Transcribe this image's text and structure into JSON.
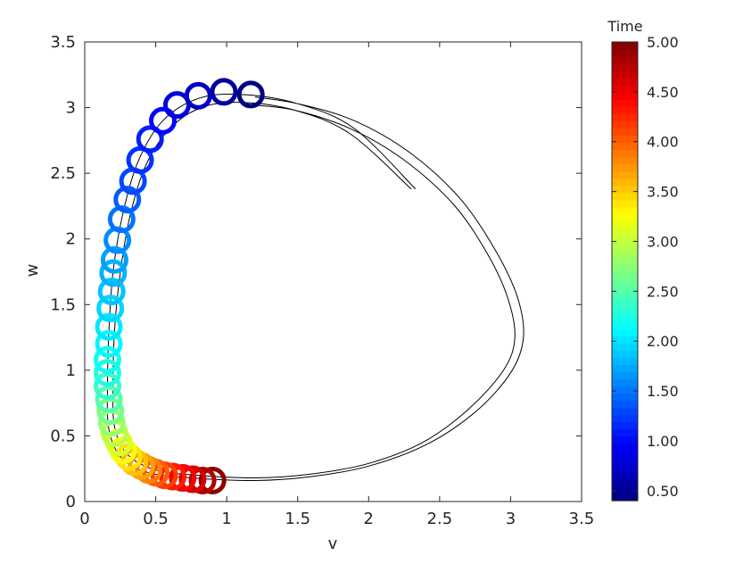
{
  "chart_data": {
    "type": "scatter",
    "title": "",
    "xlabel": "v",
    "ylabel": "w",
    "xlim": [
      0,
      3.5
    ],
    "ylim": [
      0,
      3.5
    ],
    "xticks": [
      "0",
      "0.5",
      "1",
      "1.5",
      "2",
      "2.5",
      "3",
      "3.5"
    ],
    "yticks": [
      "0",
      "0.5",
      "1",
      "1.5",
      "2",
      "2.5",
      "3",
      "3.5"
    ],
    "grid": false,
    "colormap": "jet",
    "colorbar": {
      "title": "Time",
      "range": [
        0.4,
        5.0
      ],
      "ticks": [
        "0.50",
        "1.00",
        "1.50",
        "2.00",
        "2.50",
        "3.00",
        "3.50",
        "4.00",
        "4.50",
        "5.00"
      ]
    },
    "trajectory_outer": [
      [
        2.33,
        2.38
      ],
      [
        1.9,
        2.84
      ],
      [
        1.5,
        3.03
      ],
      [
        1.1,
        3.1
      ],
      [
        0.8,
        3.07
      ],
      [
        0.55,
        2.9
      ],
      [
        0.38,
        2.6
      ],
      [
        0.27,
        2.2
      ],
      [
        0.2,
        1.75
      ],
      [
        0.17,
        1.3
      ],
      [
        0.16,
        0.9
      ],
      [
        0.17,
        0.55
      ],
      [
        0.26,
        0.33
      ],
      [
        0.45,
        0.22
      ],
      [
        0.75,
        0.18
      ],
      [
        1.2,
        0.16
      ],
      [
        1.6,
        0.19
      ],
      [
        2.0,
        0.27
      ],
      [
        2.4,
        0.43
      ],
      [
        2.75,
        0.68
      ],
      [
        3.0,
        0.98
      ],
      [
        3.09,
        1.25
      ],
      [
        3.05,
        1.55
      ],
      [
        2.9,
        1.9
      ],
      [
        2.65,
        2.3
      ],
      [
        2.3,
        2.65
      ],
      [
        1.9,
        2.9
      ],
      [
        1.5,
        3.03
      ],
      [
        1.2,
        3.08
      ]
    ],
    "trajectory_inner": [
      [
        2.3,
        2.38
      ],
      [
        1.87,
        2.8
      ],
      [
        1.48,
        2.98
      ],
      [
        1.1,
        3.04
      ],
      [
        0.82,
        3.0
      ],
      [
        0.6,
        2.84
      ],
      [
        0.43,
        2.56
      ],
      [
        0.32,
        2.18
      ],
      [
        0.25,
        1.74
      ],
      [
        0.21,
        1.3
      ],
      [
        0.2,
        0.9
      ],
      [
        0.21,
        0.57
      ],
      [
        0.3,
        0.36
      ],
      [
        0.5,
        0.24
      ],
      [
        0.8,
        0.2
      ],
      [
        1.2,
        0.18
      ],
      [
        1.6,
        0.21
      ],
      [
        2.0,
        0.29
      ],
      [
        2.38,
        0.45
      ],
      [
        2.7,
        0.7
      ],
      [
        2.95,
        1.0
      ],
      [
        3.03,
        1.25
      ],
      [
        2.98,
        1.55
      ],
      [
        2.84,
        1.88
      ],
      [
        2.6,
        2.26
      ],
      [
        2.25,
        2.6
      ],
      [
        1.87,
        2.84
      ],
      [
        1.48,
        2.98
      ],
      [
        1.18,
        3.02
      ]
    ],
    "markers": [
      {
        "v": 1.17,
        "w": 3.1,
        "t": 0.4
      },
      {
        "v": 0.98,
        "w": 3.12,
        "t": 0.55
      },
      {
        "v": 0.8,
        "w": 3.09,
        "t": 0.7
      },
      {
        "v": 0.65,
        "w": 3.02,
        "t": 0.85
      },
      {
        "v": 0.55,
        "w": 2.9,
        "t": 1.0
      },
      {
        "v": 0.46,
        "w": 2.76,
        "t": 1.1
      },
      {
        "v": 0.39,
        "w": 2.6,
        "t": 1.2
      },
      {
        "v": 0.34,
        "w": 2.44,
        "t": 1.3
      },
      {
        "v": 0.3,
        "w": 2.3,
        "t": 1.4
      },
      {
        "v": 0.26,
        "w": 2.15,
        "t": 1.5
      },
      {
        "v": 0.23,
        "w": 1.99,
        "t": 1.6
      },
      {
        "v": 0.21,
        "w": 1.84,
        "t": 1.7
      },
      {
        "v": 0.2,
        "w": 1.74,
        "t": 1.78
      },
      {
        "v": 0.19,
        "w": 1.6,
        "t": 1.86
      },
      {
        "v": 0.18,
        "w": 1.47,
        "t": 1.94
      },
      {
        "v": 0.17,
        "w": 1.33,
        "t": 2.02
      },
      {
        "v": 0.17,
        "w": 1.2,
        "t": 2.1
      },
      {
        "v": 0.16,
        "w": 1.08,
        "t": 2.18
      },
      {
        "v": 0.16,
        "w": 0.98,
        "t": 2.26
      },
      {
        "v": 0.16,
        "w": 0.88,
        "t": 2.36
      },
      {
        "v": 0.17,
        "w": 0.78,
        "t": 2.5
      },
      {
        "v": 0.18,
        "w": 0.69,
        "t": 2.65
      },
      {
        "v": 0.19,
        "w": 0.6,
        "t": 2.8
      },
      {
        "v": 0.21,
        "w": 0.52,
        "t": 2.95
      },
      {
        "v": 0.24,
        "w": 0.45,
        "t": 3.1
      },
      {
        "v": 0.27,
        "w": 0.39,
        "t": 3.25
      },
      {
        "v": 0.31,
        "w": 0.34,
        "t": 3.4
      },
      {
        "v": 0.35,
        "w": 0.3,
        "t": 3.55
      },
      {
        "v": 0.4,
        "w": 0.27,
        "t": 3.7
      },
      {
        "v": 0.45,
        "w": 0.24,
        "t": 3.85
      },
      {
        "v": 0.5,
        "w": 0.22,
        "t": 4.0
      },
      {
        "v": 0.56,
        "w": 0.2,
        "t": 4.15
      },
      {
        "v": 0.62,
        "w": 0.19,
        "t": 4.3
      },
      {
        "v": 0.69,
        "w": 0.18,
        "t": 4.45
      },
      {
        "v": 0.76,
        "w": 0.17,
        "t": 4.6
      },
      {
        "v": 0.83,
        "w": 0.16,
        "t": 4.78
      },
      {
        "v": 0.9,
        "w": 0.16,
        "t": 4.95
      }
    ]
  }
}
